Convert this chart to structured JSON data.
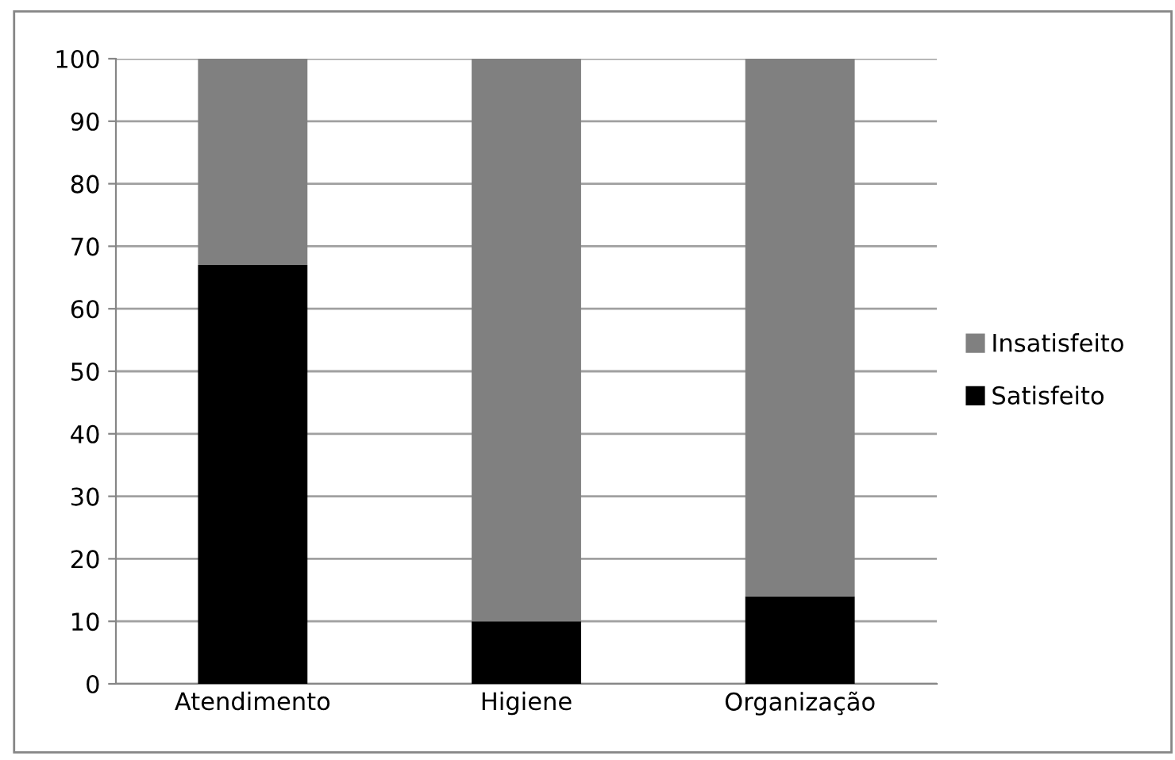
{
  "chart_data": {
    "type": "bar",
    "stacked": true,
    "categories": [
      "Atendimento",
      "Higiene",
      "Organização"
    ],
    "series": [
      {
        "name": "Satisfeito",
        "color": "#000000",
        "values": [
          67,
          10,
          14
        ]
      },
      {
        "name": "Insatisfeito",
        "color": "#808080",
        "values": [
          33,
          90,
          86
        ]
      }
    ],
    "ylim": [
      0,
      100
    ],
    "yticks": [
      0,
      10,
      20,
      30,
      40,
      50,
      60,
      70,
      80,
      90,
      100
    ],
    "grid": "y",
    "legend": "right"
  }
}
